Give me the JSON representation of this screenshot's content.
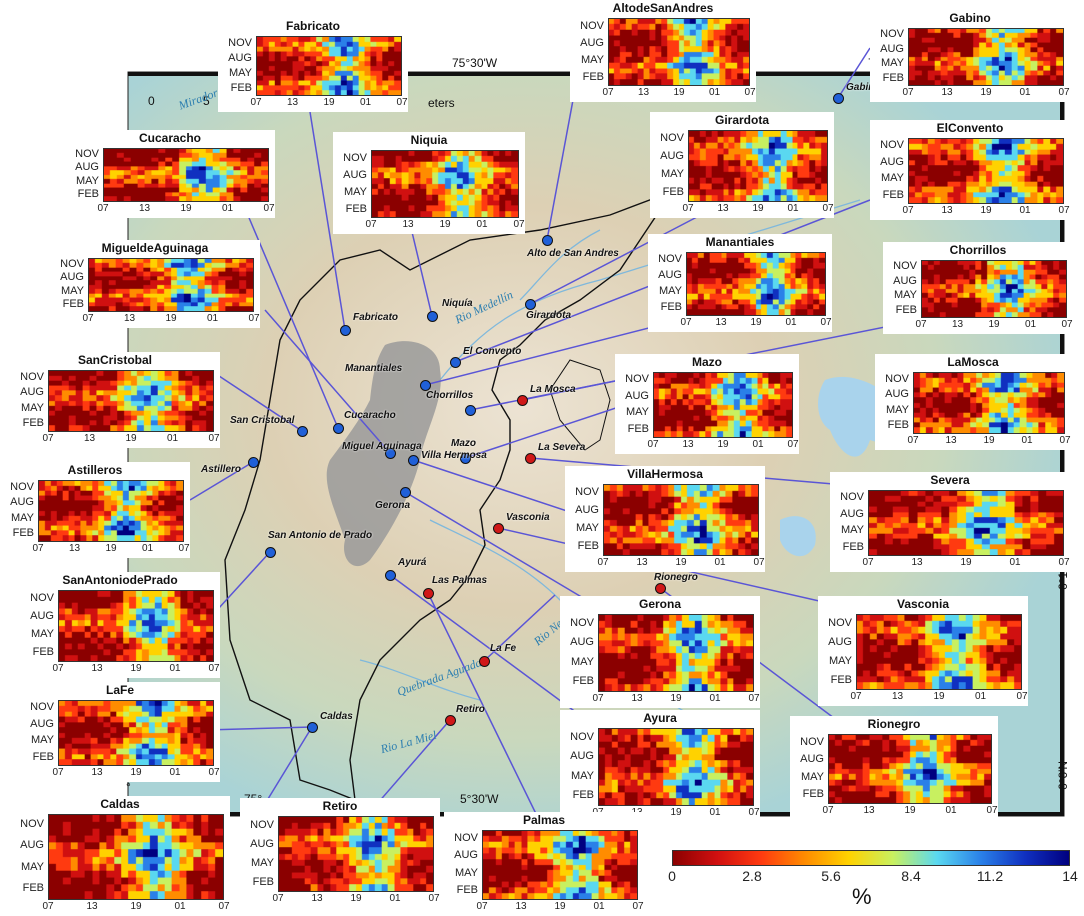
{
  "map": {
    "coords": {
      "top_lon": "75°30'W",
      "top_right_lon": "75",
      "bottom_left_lon": "75°",
      "bottom_mid_lon": "5°30'W",
      "right_lat_1": "6°10'N",
      "right_lat_2": "6°0'N",
      "left_lat": "°"
    },
    "scale": {
      "start": "0",
      "mid": "5",
      "unit": "eters"
    },
    "rivers": [
      "Rio Medellín",
      "Quebrada Aguada",
      "Rio La Miel",
      "Rio Negro",
      "Mirador"
    ],
    "sites": [
      {
        "name": "Fabricato",
        "color": "#2060d8"
      },
      {
        "name": "Niquía",
        "color": "#2060d8"
      },
      {
        "name": "Alto de San Andres",
        "color": "#2060d8"
      },
      {
        "name": "Girardota",
        "color": "#2060d8"
      },
      {
        "name": "Gabino",
        "color": "#2060d8"
      },
      {
        "name": "El Convento",
        "color": "#2060d8"
      },
      {
        "name": "Manantiales",
        "color": "#2060d8"
      },
      {
        "name": "Chorrillos",
        "color": "#2060d8"
      },
      {
        "name": "La Mosca",
        "color": "#d01818"
      },
      {
        "name": "Mazo",
        "color": "#2060d8"
      },
      {
        "name": "La Severa",
        "color": "#d01818"
      },
      {
        "name": "Villa Hermosa",
        "color": "#2060d8"
      },
      {
        "name": "Miguel Aguinaga",
        "color": "#2060d8"
      },
      {
        "name": "Cucaracho",
        "color": "#2060d8"
      },
      {
        "name": "San Cristobal",
        "color": "#2060d8"
      },
      {
        "name": "Astillero",
        "color": "#2060d8"
      },
      {
        "name": "Gerona",
        "color": "#2060d8"
      },
      {
        "name": "Vasconia",
        "color": "#d01818"
      },
      {
        "name": "San Antonio de Prado",
        "color": "#2060d8"
      },
      {
        "name": "Ayurá",
        "color": "#2060d8"
      },
      {
        "name": "Las Palmas",
        "color": "#d01818"
      },
      {
        "name": "Rionegro",
        "color": "#d01818"
      },
      {
        "name": "La Fe",
        "color": "#d01818"
      },
      {
        "name": "Retiro",
        "color": "#d01818"
      },
      {
        "name": "Caldas",
        "color": "#2060d8"
      }
    ]
  },
  "panel_axes": {
    "y_ticks": [
      "NOV",
      "AUG",
      "MAY",
      "FEB"
    ],
    "x_ticks": [
      "07",
      "13",
      "19",
      "01",
      "07"
    ]
  },
  "panels": [
    {
      "title": "Fabricato"
    },
    {
      "title": "AltodeSanAndres"
    },
    {
      "title": "Gabino"
    },
    {
      "title": "Cucaracho"
    },
    {
      "title": "Niquia"
    },
    {
      "title": "Girardota"
    },
    {
      "title": "ElConvento"
    },
    {
      "title": "MigueldeAguinaga"
    },
    {
      "title": "Manantiales"
    },
    {
      "title": "Chorrillos"
    },
    {
      "title": "SanCristobal"
    },
    {
      "title": "Mazo"
    },
    {
      "title": "LaMosca"
    },
    {
      "title": "Astilleros"
    },
    {
      "title": "VillaHermosa"
    },
    {
      "title": "Severa"
    },
    {
      "title": "SanAntoniodePrado"
    },
    {
      "title": "Gerona"
    },
    {
      "title": "Vasconia"
    },
    {
      "title": "LaFe"
    },
    {
      "title": "Ayura"
    },
    {
      "title": "Rionegro"
    },
    {
      "title": "Caldas"
    },
    {
      "title": "Retiro"
    },
    {
      "title": "Palmas"
    }
  ],
  "colorbar": {
    "ticks": [
      "0",
      "2.8",
      "5.6",
      "8.4",
      "11.2",
      "14"
    ],
    "unit": "%",
    "colors": [
      "#8b0000",
      "#d01010",
      "#ff3a10",
      "#ff8c00",
      "#ffd200",
      "#c8f060",
      "#5ad8f0",
      "#2a80e8",
      "#1030c0",
      "#000080"
    ]
  }
}
